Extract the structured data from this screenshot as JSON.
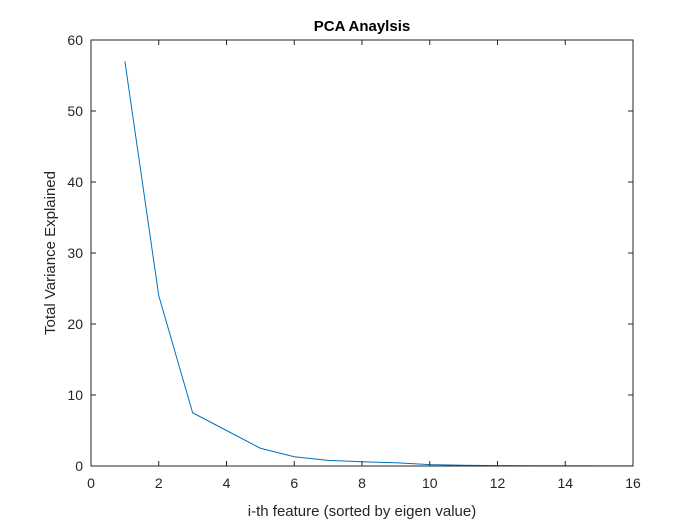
{
  "chart_data": {
    "type": "line",
    "title": "PCA Anaylsis",
    "xlabel": "i-th feature (sorted by eigen value)",
    "ylabel": "Total Variance Explained",
    "xlim": [
      0,
      16
    ],
    "ylim": [
      0,
      60
    ],
    "xticks": [
      0,
      2,
      4,
      6,
      8,
      10,
      12,
      14,
      16
    ],
    "yticks": [
      0,
      10,
      20,
      30,
      40,
      50,
      60
    ],
    "grid": false,
    "series": [
      {
        "color": "#0072BD",
        "x": [
          1,
          2,
          3,
          4,
          5,
          6,
          7,
          8,
          9,
          10,
          11,
          12,
          13,
          14,
          15,
          16
        ],
        "y": [
          57,
          24,
          7.5,
          5,
          2.5,
          1.3,
          0.8,
          0.6,
          0.45,
          0.2,
          0.1,
          0.05,
          0.04,
          0.03,
          0.02,
          0.01
        ]
      }
    ]
  }
}
